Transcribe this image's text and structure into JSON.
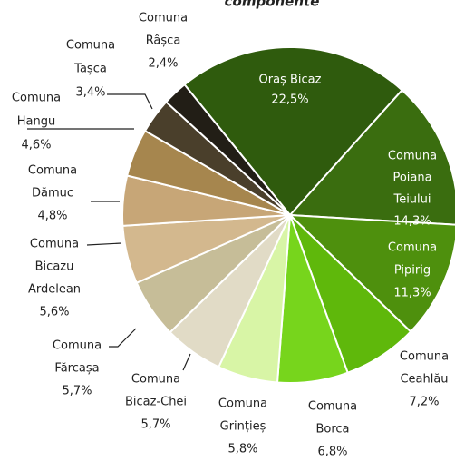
{
  "chart_data": {
    "type": "pie",
    "title": "componente",
    "categories": [
      [
        "Oraș Bicaz"
      ],
      [
        "Comuna",
        "Poiana",
        "Teiului"
      ],
      [
        "Comuna",
        "Pipirig"
      ],
      [
        "Comuna",
        "Ceahlău"
      ],
      [
        "Comuna",
        "Borca"
      ],
      [
        "Comuna",
        "Grințieș"
      ],
      [
        "Comuna",
        "Bicaz-Chei"
      ],
      [
        "Comuna",
        "Fărcașa"
      ],
      [
        "Comuna",
        "Bicazu",
        "Ardelean"
      ],
      [
        "Comuna",
        "Dămuc"
      ],
      [
        "Comuna",
        "Hangu"
      ],
      [
        "Comuna",
        "Tașca"
      ],
      [
        "Comuna",
        "Râșca"
      ]
    ],
    "values": [
      22.5,
      14.3,
      11.3,
      7.2,
      6.8,
      5.8,
      5.7,
      5.7,
      5.6,
      4.8,
      4.6,
      3.4,
      2.4
    ],
    "value_labels": [
      "22,5%",
      "14,3%",
      "11,3%",
      "7,2%",
      "6,8%",
      "5,8%",
      "5,7%",
      "5,7%",
      "5,6%",
      "4,8%",
      "4,6%",
      "3,4%",
      "2,4%"
    ],
    "colors": [
      "#2f5b0d",
      "#3a6d0f",
      "#4e900d",
      "#5fb80b",
      "#77d51c",
      "#d8f5a6",
      "#e1dbc6",
      "#c6bd98",
      "#d3b88e",
      "#c7a677",
      "#a6864e",
      "#4a3f2b",
      "#221e16"
    ]
  }
}
